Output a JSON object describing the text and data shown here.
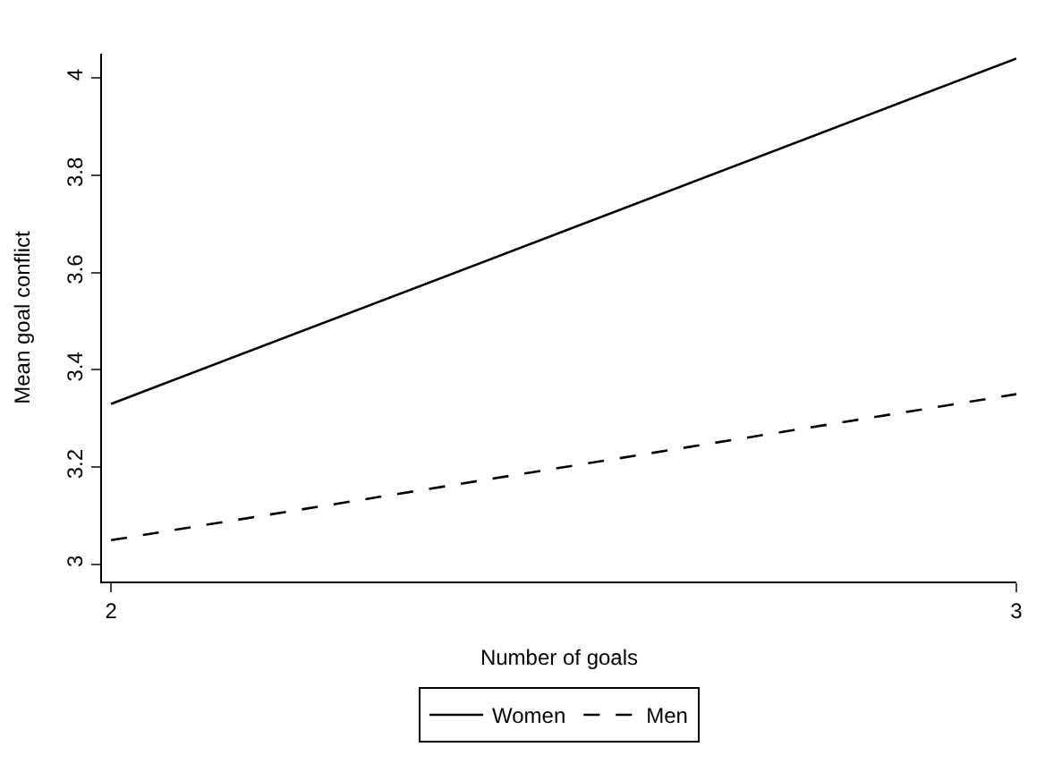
{
  "chart_data": {
    "type": "line",
    "xlabel": "Number of goals",
    "ylabel": "Mean goal conflict",
    "x": [
      2,
      3
    ],
    "series": [
      {
        "name": "Women",
        "color": "#000000",
        "values": [
          3.33,
          4.04
        ],
        "line_style": "solid"
      },
      {
        "name": "Men",
        "color": "#000000",
        "values": [
          3.05,
          3.35
        ],
        "line_style": "dashed"
      }
    ],
    "xlim": [
      1.99,
      3.0
    ],
    "xticks": [
      2,
      3
    ],
    "ylim": [
      2.965,
      4.05
    ],
    "yticks": [
      3,
      3.2,
      3.4,
      3.6,
      3.8,
      4
    ],
    "legend": "bottom",
    "marker": "none"
  }
}
